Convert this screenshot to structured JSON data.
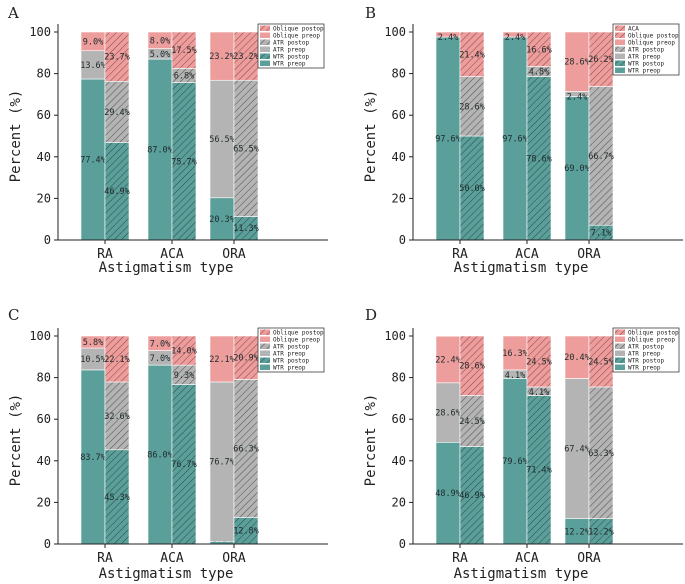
{
  "chart_data": [
    {
      "type": "bar",
      "panel": "A",
      "categories": [
        "RA",
        "ACA",
        "ORA"
      ],
      "xlabel": "Astigmatism type",
      "ylabel": "Percent (%)",
      "ylim": [
        0,
        100
      ],
      "yticks": [
        0,
        20,
        40,
        60,
        80,
        100
      ],
      "legend": [
        "Oblique postop",
        "Oblique preop",
        "ATR postop",
        "ATR preop",
        "WTR postop",
        "WTR preop"
      ],
      "bars": [
        {
          "group": "RA",
          "phase": "preop",
          "segments": [
            {
              "type": "WTR",
              "value": 77.4,
              "label": "77.4%"
            },
            {
              "type": "ATR",
              "value": 13.6,
              "label": "13.6%"
            },
            {
              "type": "Oblique",
              "value": 9.0,
              "label": "9.0%"
            }
          ]
        },
        {
          "group": "RA",
          "phase": "postop",
          "segments": [
            {
              "type": "WTR",
              "value": 46.9,
              "label": "46.9%"
            },
            {
              "type": "ATR",
              "value": 29.4,
              "label": "29.4%"
            },
            {
              "type": "Oblique",
              "value": 23.7,
              "label": "23.7%"
            }
          ]
        },
        {
          "group": "ACA",
          "phase": "preop",
          "segments": [
            {
              "type": "WTR",
              "value": 87.0,
              "label": "87.0%"
            },
            {
              "type": "ATR",
              "value": 5.0,
              "label": "5.0%"
            },
            {
              "type": "Oblique",
              "value": 8.0,
              "label": "8.0%"
            }
          ]
        },
        {
          "group": "ACA",
          "phase": "postop",
          "segments": [
            {
              "type": "WTR",
              "value": 75.7,
              "label": "75.7%"
            },
            {
              "type": "ATR",
              "value": 6.8,
              "label": "6.8%"
            },
            {
              "type": "Oblique",
              "value": 17.5,
              "label": "17.5%"
            }
          ]
        },
        {
          "group": "ORA",
          "phase": "preop",
          "segments": [
            {
              "type": "WTR",
              "value": 20.3,
              "label": "20.3%"
            },
            {
              "type": "ATR",
              "value": 56.5,
              "label": "56.5%"
            },
            {
              "type": "Oblique",
              "value": 23.2,
              "label": "23.2%"
            }
          ]
        },
        {
          "group": "ORA",
          "phase": "postop",
          "segments": [
            {
              "type": "WTR",
              "value": 11.3,
              "label": "11.3%"
            },
            {
              "type": "ATR",
              "value": 65.5,
              "label": "65.5%"
            },
            {
              "type": "Oblique",
              "value": 23.2,
              "label": "23.2%"
            }
          ]
        }
      ]
    },
    {
      "type": "bar",
      "panel": "B",
      "categories": [
        "RA",
        "ACA",
        "ORA"
      ],
      "xlabel": "Astigmatism type",
      "ylabel": "Percent (%)",
      "ylim": [
        0,
        100
      ],
      "yticks": [
        0,
        20,
        40,
        60,
        80,
        100
      ],
      "legend": [
        "ACA",
        "Oblique postop",
        "Oblique preop",
        "ATR postop",
        "ATR preop",
        "WTR postop",
        "WTR preop"
      ],
      "bars": [
        {
          "group": "RA",
          "phase": "preop",
          "segments": [
            {
              "type": "WTR",
              "value": 97.6,
              "label": "97.6%"
            },
            {
              "type": "ATR",
              "value": 0,
              "label": ""
            },
            {
              "type": "Oblique",
              "value": 2.4,
              "label": "2.4%"
            }
          ]
        },
        {
          "group": "RA",
          "phase": "postop",
          "segments": [
            {
              "type": "WTR",
              "value": 50.0,
              "label": "50.0%"
            },
            {
              "type": "ATR",
              "value": 28.6,
              "label": "28.6%"
            },
            {
              "type": "Oblique",
              "value": 21.4,
              "label": "21.4%"
            }
          ]
        },
        {
          "group": "ACA",
          "phase": "preop",
          "segments": [
            {
              "type": "WTR",
              "value": 97.6,
              "label": "97.6%"
            },
            {
              "type": "ATR",
              "value": 0,
              "label": ""
            },
            {
              "type": "Oblique",
              "value": 2.4,
              "label": "2.4%"
            }
          ]
        },
        {
          "group": "ACA",
          "phase": "postop",
          "segments": [
            {
              "type": "WTR",
              "value": 78.6,
              "label": "78.6%"
            },
            {
              "type": "ATR",
              "value": 4.8,
              "label": "4.8%"
            },
            {
              "type": "Oblique",
              "value": 16.6,
              "label": "16.6%"
            }
          ]
        },
        {
          "group": "ORA",
          "phase": "preop",
          "segments": [
            {
              "type": "WTR",
              "value": 69.0,
              "label": "69.0%"
            },
            {
              "type": "ATR",
              "value": 2.4,
              "label": "2.4%"
            },
            {
              "type": "Oblique",
              "value": 28.6,
              "label": "28.6%"
            }
          ]
        },
        {
          "group": "ORA",
          "phase": "postop",
          "segments": [
            {
              "type": "WTR",
              "value": 7.1,
              "label": "7.1%"
            },
            {
              "type": "ATR",
              "value": 66.7,
              "label": "66.7%"
            },
            {
              "type": "Oblique",
              "value": 26.2,
              "label": "26.2%"
            }
          ]
        }
      ]
    },
    {
      "type": "bar",
      "panel": "C",
      "categories": [
        "RA",
        "ACA",
        "ORA"
      ],
      "xlabel": "Astigmatism type",
      "ylabel": "Percent (%)",
      "ylim": [
        0,
        100
      ],
      "yticks": [
        0,
        20,
        40,
        60,
        80,
        100
      ],
      "legend": [
        "Oblique postop",
        "Oblique preop",
        "ATR postop",
        "ATR preop",
        "WTR postop",
        "WTR preop"
      ],
      "bars": [
        {
          "group": "RA",
          "phase": "preop",
          "segments": [
            {
              "type": "WTR",
              "value": 83.7,
              "label": "83.7%"
            },
            {
              "type": "ATR",
              "value": 10.5,
              "label": "10.5%"
            },
            {
              "type": "Oblique",
              "value": 5.8,
              "label": "5.8%"
            }
          ]
        },
        {
          "group": "RA",
          "phase": "postop",
          "segments": [
            {
              "type": "WTR",
              "value": 45.3,
              "label": "45.3%"
            },
            {
              "type": "ATR",
              "value": 32.6,
              "label": "32.6%"
            },
            {
              "type": "Oblique",
              "value": 22.1,
              "label": "22.1%"
            }
          ]
        },
        {
          "group": "ACA",
          "phase": "preop",
          "segments": [
            {
              "type": "WTR",
              "value": 86.0,
              "label": "86.0%"
            },
            {
              "type": "ATR",
              "value": 7.0,
              "label": "7.0%"
            },
            {
              "type": "Oblique",
              "value": 7.0,
              "label": "7.0%"
            }
          ]
        },
        {
          "group": "ACA",
          "phase": "postop",
          "segments": [
            {
              "type": "WTR",
              "value": 76.7,
              "label": "76.7%"
            },
            {
              "type": "ATR",
              "value": 9.3,
              "label": "9.3%"
            },
            {
              "type": "Oblique",
              "value": 14.0,
              "label": "14.0%"
            }
          ]
        },
        {
          "group": "ORA",
          "phase": "preop",
          "segments": [
            {
              "type": "WTR",
              "value": 1.2,
              "label": "1.2%"
            },
            {
              "type": "ATR",
              "value": 76.7,
              "label": "76.7%"
            },
            {
              "type": "Oblique",
              "value": 22.1,
              "label": "22.1%"
            }
          ]
        },
        {
          "group": "ORA",
          "phase": "postop",
          "segments": [
            {
              "type": "WTR",
              "value": 12.8,
              "label": "12.8%"
            },
            {
              "type": "ATR",
              "value": 66.3,
              "label": "66.3%"
            },
            {
              "type": "Oblique",
              "value": 20.9,
              "label": "20.9%"
            }
          ]
        }
      ]
    },
    {
      "type": "bar",
      "panel": "D",
      "categories": [
        "RA",
        "ACA",
        "ORA"
      ],
      "xlabel": "Astigmatism type",
      "ylabel": "Percent (%)",
      "ylim": [
        0,
        100
      ],
      "yticks": [
        0,
        20,
        40,
        60,
        80,
        100
      ],
      "legend": [
        "Oblique postop",
        "Oblique preop",
        "ATR postop",
        "ATR preop",
        "WTR postop",
        "WTR preop"
      ],
      "bars": [
        {
          "group": "RA",
          "phase": "preop",
          "segments": [
            {
              "type": "WTR",
              "value": 48.9,
              "label": "48.9%"
            },
            {
              "type": "ATR",
              "value": 28.6,
              "label": "28.6%"
            },
            {
              "type": "Oblique",
              "value": 22.4,
              "label": "22.4%"
            }
          ]
        },
        {
          "group": "RA",
          "phase": "postop",
          "segments": [
            {
              "type": "WTR",
              "value": 46.9,
              "label": "46.9%"
            },
            {
              "type": "ATR",
              "value": 24.5,
              "label": "24.5%"
            },
            {
              "type": "Oblique",
              "value": 28.6,
              "label": "28.6%"
            }
          ]
        },
        {
          "group": "ACA",
          "phase": "preop",
          "segments": [
            {
              "type": "WTR",
              "value": 79.6,
              "label": "79.6%"
            },
            {
              "type": "ATR",
              "value": 4.1,
              "label": "4.1%"
            },
            {
              "type": "Oblique",
              "value": 16.3,
              "label": "16.3%"
            }
          ]
        },
        {
          "group": "ACA",
          "phase": "postop",
          "segments": [
            {
              "type": "WTR",
              "value": 71.4,
              "label": "71.4%"
            },
            {
              "type": "ATR",
              "value": 4.1,
              "label": "4.1%"
            },
            {
              "type": "Oblique",
              "value": 24.5,
              "label": "24.5%"
            }
          ]
        },
        {
          "group": "ORA",
          "phase": "preop",
          "segments": [
            {
              "type": "WTR",
              "value": 12.2,
              "label": "12.2%"
            },
            {
              "type": "ATR",
              "value": 67.4,
              "label": "67.4%"
            },
            {
              "type": "Oblique",
              "value": 20.4,
              "label": "20.4%"
            }
          ]
        },
        {
          "group": "ORA",
          "phase": "postop",
          "segments": [
            {
              "type": "WTR",
              "value": 12.2,
              "label": "12.2%"
            },
            {
              "type": "ATR",
              "value": 63.3,
              "label": "63.3%"
            },
            {
              "type": "Oblique",
              "value": 24.5,
              "label": "24.5%"
            }
          ]
        }
      ]
    }
  ],
  "colors": {
    "WTR": "#5b9f9b",
    "ATR": "#b4b4b4",
    "Oblique": "#ee9d9d",
    "hatch": "#333333",
    "axis": "#222222"
  }
}
